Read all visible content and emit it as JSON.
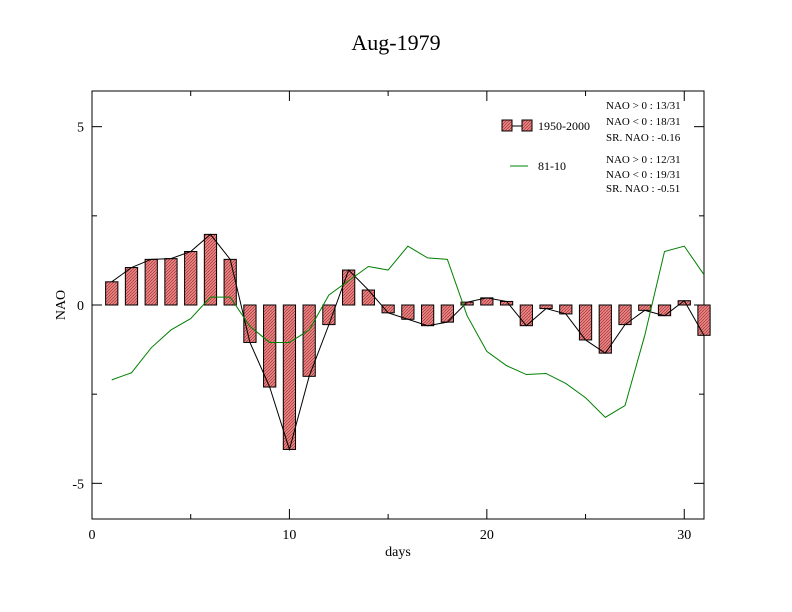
{
  "chart_data": {
    "type": "bar",
    "title": "Aug-1979",
    "xlabel": "days",
    "ylabel": "NAO",
    "xlim": [
      0,
      31
    ],
    "ylim": [
      -6,
      6
    ],
    "x_ticks": [
      0,
      10,
      20,
      30
    ],
    "y_ticks": [
      5,
      0,
      -5
    ],
    "x_tick_labels": [
      "0",
      "10",
      "20",
      "30"
    ],
    "y_tick_labels": [
      "5",
      "0",
      "-5"
    ],
    "grid": false,
    "legend_placement": "top-right",
    "bar_color": "#f08080",
    "line_color": "#008000",
    "series": [
      {
        "name": "1950-2000",
        "kind": "bar",
        "x": [
          1,
          2,
          3,
          4,
          5,
          6,
          7,
          8,
          9,
          10,
          11,
          12,
          13,
          14,
          15,
          16,
          17,
          18,
          19,
          20,
          21,
          22,
          23,
          24,
          25,
          26,
          27,
          28,
          29,
          30,
          31
        ],
        "values": [
          0.65,
          1.05,
          1.28,
          1.3,
          1.5,
          1.98,
          1.28,
          -1.05,
          -2.3,
          -4.05,
          -2.0,
          -0.55,
          0.98,
          0.42,
          -0.22,
          -0.4,
          -0.58,
          -0.48,
          0.08,
          0.2,
          0.1,
          -0.58,
          -0.1,
          -0.25,
          -0.98,
          -1.35,
          -0.55,
          -0.15,
          -0.3,
          0.12,
          -0.85
        ]
      },
      {
        "name": "81-10",
        "kind": "line",
        "x": [
          1,
          2,
          3,
          4,
          5,
          6,
          7,
          8,
          9,
          10,
          11,
          12,
          13,
          14,
          15,
          16,
          17,
          18,
          19,
          20,
          21,
          22,
          23,
          24,
          25,
          26,
          27,
          28,
          29,
          30,
          31
        ],
        "values": [
          -2.1,
          -1.9,
          -1.2,
          -0.7,
          -0.38,
          0.22,
          0.22,
          -0.6,
          -1.05,
          -1.05,
          -0.7,
          0.28,
          0.68,
          1.08,
          0.98,
          1.65,
          1.32,
          1.28,
          -0.3,
          -1.3,
          -1.7,
          -1.95,
          -1.92,
          -2.2,
          -2.6,
          -3.15,
          -2.82,
          -0.85,
          1.5,
          1.65,
          0.85
        ]
      }
    ],
    "stats": {
      "bars": [
        "NAO > 0 : 13/31",
        "NAO < 0 : 18/31",
        "SR. NAO : -0.16"
      ],
      "line": [
        "NAO > 0 : 12/31",
        "NAO < 0 : 19/31",
        "SR. NAO : -0.51"
      ]
    }
  }
}
